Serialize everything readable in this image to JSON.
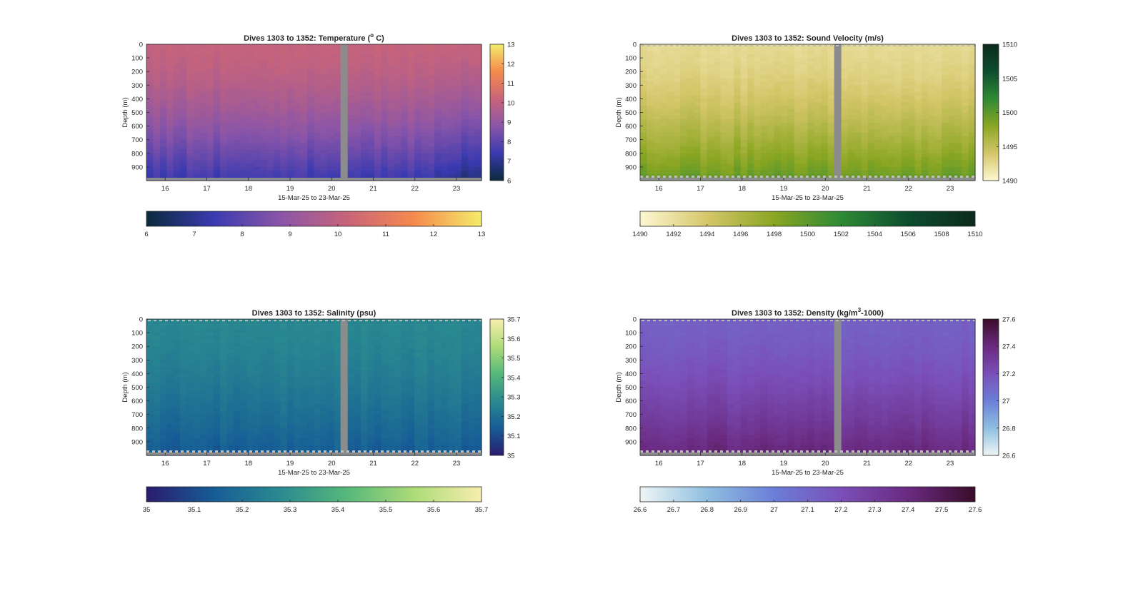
{
  "figure_background": "#ffffff",
  "missing_data_color": "#8c8c8c",
  "chart_data": [
    {
      "type": "heatmap",
      "title": "Dives 1303 to 1352: Temperature (",
      "title_sup": "o",
      "title_tail": " C)",
      "xlabel": "15-Mar-25 to 23-Mar-25",
      "ylabel": "Depth (m)",
      "x_ticks": [
        "16",
        "17",
        "18",
        "19",
        "20",
        "21",
        "22",
        "23"
      ],
      "x_range_days": [
        15.55,
        23.6
      ],
      "y_ticks": [
        "0",
        "100",
        "200",
        "300",
        "400",
        "500",
        "600",
        "700",
        "800",
        "900"
      ],
      "y_range": [
        0,
        1000
      ],
      "y_reversed": true,
      "gap_day": 20.3,
      "colorbar_ticks": [
        "6",
        "7",
        "8",
        "9",
        "10",
        "11",
        "12",
        "13"
      ],
      "clim": [
        6,
        13
      ],
      "colormap": [
        "#0a2a3c",
        "#3a3ab0",
        "#8a55a8",
        "#c8647a",
        "#f58a4c",
        "#f3ec6a"
      ],
      "surface_value": 10.1,
      "deep_value": 7.4,
      "bottom_dashes": false
    },
    {
      "type": "heatmap",
      "title": "Dives 1303 to 1352: Sound Velocity (m/s)",
      "xlabel": "15-Mar-25 to 23-Mar-25",
      "ylabel": "Depth (m)",
      "x_ticks": [
        "16",
        "17",
        "18",
        "19",
        "20",
        "21",
        "22",
        "23"
      ],
      "x_range_days": [
        15.55,
        23.6
      ],
      "y_ticks": [
        "0",
        "100",
        "200",
        "300",
        "400",
        "500",
        "600",
        "700",
        "800",
        "900"
      ],
      "y_range": [
        0,
        1000
      ],
      "y_reversed": true,
      "gap_day": 20.3,
      "colorbar_ticks": [
        "1490",
        "1495",
        "1500",
        "1505",
        "1510"
      ],
      "colorbar_h_ticks": [
        "1490",
        "1492",
        "1494",
        "1496",
        "1498",
        "1500",
        "1502",
        "1504",
        "1506",
        "1508",
        "1510"
      ],
      "clim": [
        1490,
        1510
      ],
      "colormap": [
        "#fdf7d2",
        "#d5c66a",
        "#8aa622",
        "#2e8a35",
        "#0d4d2e",
        "#0c2a1c"
      ],
      "surface_value": 1492.5,
      "deep_value": 1499.5,
      "bottom_dashes": true
    },
    {
      "type": "heatmap",
      "title": "Dives 1303 to 1352: Salinity (psu)",
      "xlabel": "15-Mar-25 to 23-Mar-25",
      "ylabel": "Depth (m)",
      "x_ticks": [
        "16",
        "17",
        "18",
        "19",
        "20",
        "21",
        "22",
        "23"
      ],
      "x_range_days": [
        15.55,
        23.6
      ],
      "y_ticks": [
        "0",
        "100",
        "200",
        "300",
        "400",
        "500",
        "600",
        "700",
        "800",
        "900"
      ],
      "y_range": [
        0,
        1000
      ],
      "y_reversed": true,
      "gap_day": 20.3,
      "colorbar_ticks": [
        "35",
        "35.1",
        "35.2",
        "35.3",
        "35.4",
        "35.5",
        "35.6",
        "35.7"
      ],
      "clim": [
        35,
        35.7
      ],
      "colormap": [
        "#2a1c6e",
        "#165c96",
        "#2a8a90",
        "#56b87a",
        "#aedb78",
        "#f7eeae"
      ],
      "surface_value": 35.27,
      "deep_value": 35.14,
      "bottom_dashes": true
    },
    {
      "type": "heatmap",
      "title": "Dives 1303 to 1352: Density (kg/m",
      "title_sup": "3",
      "title_tail": "-1000)",
      "xlabel": "15-Mar-25 to 23-Mar-25",
      "ylabel": "Depth (m)",
      "x_ticks": [
        "16",
        "17",
        "18",
        "19",
        "20",
        "21",
        "22",
        "23"
      ],
      "x_range_days": [
        15.55,
        23.6
      ],
      "y_ticks": [
        "0",
        "100",
        "200",
        "300",
        "400",
        "500",
        "600",
        "700",
        "800",
        "900"
      ],
      "y_range": [
        0,
        1000
      ],
      "y_reversed": true,
      "gap_day": 20.3,
      "colorbar_ticks": [
        "26.6",
        "26.8",
        "27",
        "27.2",
        "27.4",
        "27.6"
      ],
      "colorbar_h_ticks": [
        "26.6",
        "26.7",
        "26.8",
        "26.9",
        "27",
        "27.1",
        "27.2",
        "27.3",
        "27.4",
        "27.5",
        "27.6"
      ],
      "clim": [
        26.6,
        27.6
      ],
      "colormap": [
        "#eef5f5",
        "#8fbfe0",
        "#6b7ed8",
        "#7a4fb8",
        "#6a2a80",
        "#3a0c2a"
      ],
      "surface_value": 27.13,
      "deep_value": 27.42,
      "bottom_dashes": true
    }
  ]
}
